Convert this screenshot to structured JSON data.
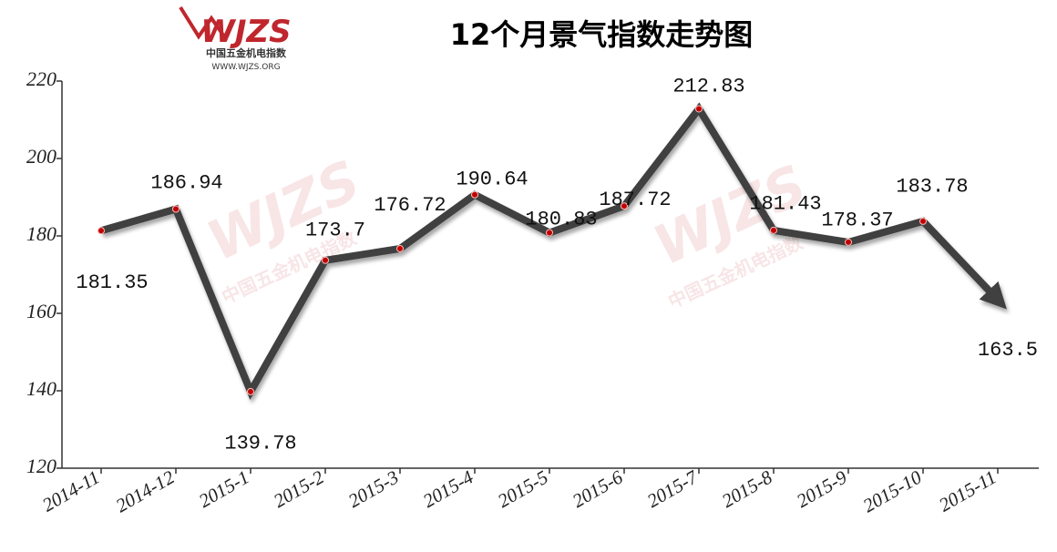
{
  "chart_data": {
    "type": "line",
    "title": "12个月景气指数走势图",
    "logo": {
      "mark": "WJZS",
      "name": "中国五金机电指数",
      "url": "WWW.WJZS.ORG"
    },
    "categories": [
      "2014-11",
      "2014-12",
      "2015-1",
      "2015-2",
      "2015-3",
      "2015-4",
      "2015-5",
      "2015-6",
      "2015-7",
      "2015-8",
      "2015-9",
      "2015-10",
      "2015-11"
    ],
    "values": [
      181.35,
      186.94,
      139.78,
      173.7,
      176.72,
      190.64,
      180.83,
      187.72,
      212.83,
      181.43,
      178.37,
      183.78,
      163.5
    ],
    "color": "#404040",
    "marker_color": "#c00000",
    "ylim": [
      120,
      220
    ],
    "yticks": [
      120,
      140,
      160,
      180,
      200,
      220
    ],
    "grid": false
  }
}
